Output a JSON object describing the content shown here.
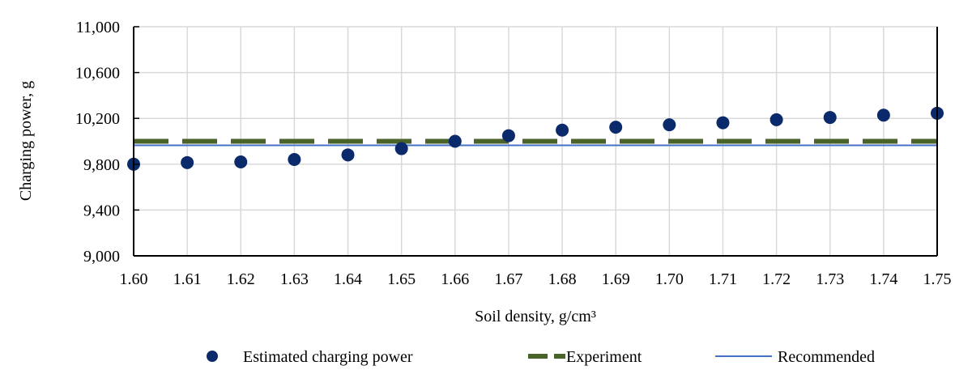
{
  "chart_data": {
    "type": "scatter",
    "title": "",
    "xlabel": "Soil density, g/cm³",
    "ylabel": "Charging power, g",
    "ylim": [
      9000,
      11000
    ],
    "yticks": [
      9000,
      9400,
      9800,
      10200,
      10600,
      11000
    ],
    "ytick_labels": [
      "9,000",
      "9,400",
      "9,800",
      "10,200",
      "10,600",
      "11,000"
    ],
    "x": [
      "1.60",
      "1.61",
      "1.62",
      "1.63",
      "1.64",
      "1.65",
      "1.66",
      "1.67",
      "1.68",
      "1.69",
      "1.70",
      "1.71",
      "1.72",
      "1.73",
      "1.74",
      "1.75"
    ],
    "grid": true,
    "legend_position": "bottom",
    "series": [
      {
        "name": "Estimated charging power",
        "kind": "points",
        "color": "#0b2a6b",
        "values": [
          9800,
          9814,
          9820,
          9841,
          9881,
          9936,
          10000,
          10049,
          10097,
          10123,
          10144,
          10162,
          10188,
          10208,
          10228,
          10245
        ]
      },
      {
        "name": "Experiment",
        "kind": "dashed-line",
        "color": "#4a6328",
        "value": 10000
      },
      {
        "name": "Recommended",
        "kind": "line",
        "color": "#4472c4",
        "value": 9965
      }
    ]
  }
}
